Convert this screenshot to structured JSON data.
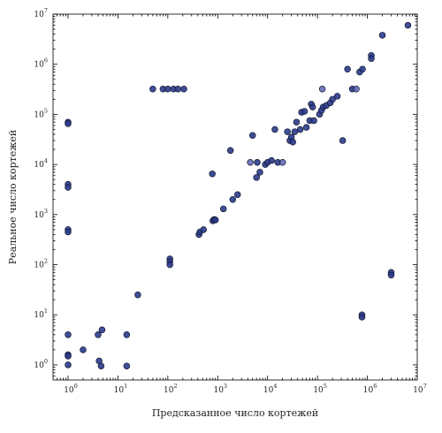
{
  "chart_data": {
    "type": "scatter",
    "title": "",
    "xlabel": "Предсказанное число кортежей",
    "ylabel": "Реальное число кортежей",
    "xscale": "log",
    "yscale": "log",
    "xlim": [
      0.5,
      10000000
    ],
    "ylim": [
      0.5,
      10000000
    ],
    "x_ticks": [
      {
        "value": 1,
        "base": "10",
        "exp": "0"
      },
      {
        "value": 10,
        "base": "10",
        "exp": "1"
      },
      {
        "value": 100,
        "base": "10",
        "exp": "2"
      },
      {
        "value": 1000,
        "base": "10",
        "exp": "3"
      },
      {
        "value": 10000,
        "base": "10",
        "exp": "4"
      },
      {
        "value": 100000,
        "base": "10",
        "exp": "5"
      },
      {
        "value": 1000000,
        "base": "10",
        "exp": "6"
      },
      {
        "value": 10000000,
        "base": "10",
        "exp": "7"
      }
    ],
    "y_ticks": [
      {
        "value": 1,
        "base": "10",
        "exp": "0"
      },
      {
        "value": 10,
        "base": "10",
        "exp": "1"
      },
      {
        "value": 100,
        "base": "10",
        "exp": "2"
      },
      {
        "value": 1000,
        "base": "10",
        "exp": "3"
      },
      {
        "value": 10000,
        "base": "10",
        "exp": "4"
      },
      {
        "value": 100000,
        "base": "10",
        "exp": "5"
      },
      {
        "value": 1000000,
        "base": "10",
        "exp": "6"
      },
      {
        "value": 10000000,
        "base": "10",
        "exp": "7"
      }
    ],
    "grid": false,
    "legend": "none",
    "marker_color": "#2b3a8c",
    "marker_color_light": "#5a63b3",
    "marker_edge": "#101830",
    "points": [
      {
        "x": 1,
        "y": 70000
      },
      {
        "x": 1,
        "y": 65000
      },
      {
        "x": 1,
        "y": 4000
      },
      {
        "x": 1,
        "y": 3500
      },
      {
        "x": 1,
        "y": 500
      },
      {
        "x": 1,
        "y": 450
      },
      {
        "x": 1,
        "y": 4
      },
      {
        "x": 1,
        "y": 1.6
      },
      {
        "x": 1,
        "y": 1.5
      },
      {
        "x": 1,
        "y": 1
      },
      {
        "x": 2,
        "y": 2
      },
      {
        "x": 4,
        "y": 4
      },
      {
        "x": 4.2,
        "y": 1.2
      },
      {
        "x": 4.8,
        "y": 5
      },
      {
        "x": 4.6,
        "y": 0.95
      },
      {
        "x": 15,
        "y": 4
      },
      {
        "x": 15,
        "y": 0.95
      },
      {
        "x": 25,
        "y": 25
      },
      {
        "x": 50,
        "y": 320000
      },
      {
        "x": 80,
        "y": 320000
      },
      {
        "x": 100,
        "y": 320000
      },
      {
        "x": 130,
        "y": 320000
      },
      {
        "x": 160,
        "y": 320000
      },
      {
        "x": 210,
        "y": 320000
      },
      {
        "x": 110,
        "y": 130
      },
      {
        "x": 110,
        "y": 115
      },
      {
        "x": 110,
        "y": 100
      },
      {
        "x": 420,
        "y": 400
      },
      {
        "x": 440,
        "y": 450
      },
      {
        "x": 520,
        "y": 500
      },
      {
        "x": 800,
        "y": 750
      },
      {
        "x": 850,
        "y": 800
      },
      {
        "x": 900,
        "y": 780
      },
      {
        "x": 780,
        "y": 6500
      },
      {
        "x": 1300,
        "y": 1300
      },
      {
        "x": 1800,
        "y": 19000
      },
      {
        "x": 2000,
        "y": 2000
      },
      {
        "x": 2500,
        "y": 2500
      },
      {
        "x": 4500,
        "y": 11000,
        "light": true
      },
      {
        "x": 5000,
        "y": 38000
      },
      {
        "x": 6000,
        "y": 5500
      },
      {
        "x": 6200,
        "y": 11000
      },
      {
        "x": 7000,
        "y": 7000
      },
      {
        "x": 9000,
        "y": 10000
      },
      {
        "x": 10000,
        "y": 11000
      },
      {
        "x": 12000,
        "y": 12000
      },
      {
        "x": 14000,
        "y": 50000
      },
      {
        "x": 16000,
        "y": 11000
      },
      {
        "x": 20000,
        "y": 11000,
        "light": true
      },
      {
        "x": 25000,
        "y": 45000
      },
      {
        "x": 28000,
        "y": 30000
      },
      {
        "x": 30000,
        "y": 35000
      },
      {
        "x": 32000,
        "y": 28000
      },
      {
        "x": 35000,
        "y": 45000
      },
      {
        "x": 38000,
        "y": 70000
      },
      {
        "x": 45000,
        "y": 50000
      },
      {
        "x": 48000,
        "y": 110000
      },
      {
        "x": 55000,
        "y": 115000
      },
      {
        "x": 60000,
        "y": 55000
      },
      {
        "x": 70000,
        "y": 75000
      },
      {
        "x": 75000,
        "y": 160000
      },
      {
        "x": 80000,
        "y": 140000
      },
      {
        "x": 85000,
        "y": 75000
      },
      {
        "x": 110000,
        "y": 100000
      },
      {
        "x": 120000,
        "y": 120000
      },
      {
        "x": 125000,
        "y": 320000,
        "light": true
      },
      {
        "x": 130000,
        "y": 140000
      },
      {
        "x": 150000,
        "y": 150000
      },
      {
        "x": 180000,
        "y": 170000
      },
      {
        "x": 200000,
        "y": 200000
      },
      {
        "x": 250000,
        "y": 230000
      },
      {
        "x": 320000,
        "y": 30000
      },
      {
        "x": 400000,
        "y": 800000
      },
      {
        "x": 500000,
        "y": 320000
      },
      {
        "x": 600000,
        "y": 320000,
        "light": true
      },
      {
        "x": 700000,
        "y": 700000
      },
      {
        "x": 800000,
        "y": 800000
      },
      {
        "x": 780000,
        "y": 10
      },
      {
        "x": 780000,
        "y": 9
      },
      {
        "x": 1200000,
        "y": 1500000
      },
      {
        "x": 1200000,
        "y": 1300000
      },
      {
        "x": 2000000,
        "y": 3800000
      },
      {
        "x": 3000000,
        "y": 70
      },
      {
        "x": 3000000,
        "y": 62
      },
      {
        "x": 6500000,
        "y": 6000000
      }
    ]
  }
}
